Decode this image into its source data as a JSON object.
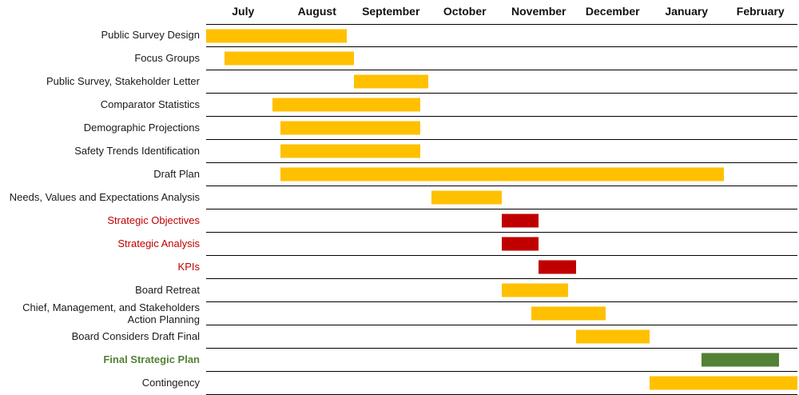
{
  "chart_data": {
    "type": "bar",
    "subtype": "gantt",
    "title": "",
    "months": [
      "July",
      "August",
      "September",
      "October",
      "November",
      "December",
      "January",
      "February"
    ],
    "axis_range_months": [
      0,
      8
    ],
    "grid": "horizontal-row-lines",
    "colors": {
      "amber": "#FFC000",
      "red": "#C00000",
      "green": "#538135"
    },
    "label_colors": {
      "black": "#1a1a1a",
      "red": "#C00000",
      "green": "#538135"
    },
    "tasks": [
      {
        "label": "Public Survey Design",
        "start": 0.0,
        "end": 1.9,
        "color": "amber",
        "label_color": "black",
        "bold": false
      },
      {
        "label": "Focus Groups",
        "start": 0.25,
        "end": 2.0,
        "color": "amber",
        "label_color": "black",
        "bold": false
      },
      {
        "label": "Public Survey, Stakeholder Letter",
        "start": 2.0,
        "end": 3.0,
        "color": "amber",
        "label_color": "black",
        "bold": false
      },
      {
        "label": "Comparator Statistics",
        "start": 0.9,
        "end": 2.9,
        "color": "amber",
        "label_color": "black",
        "bold": false
      },
      {
        "label": "Demographic Projections",
        "start": 1.0,
        "end": 2.9,
        "color": "amber",
        "label_color": "black",
        "bold": false
      },
      {
        "label": "Safety Trends Identification",
        "start": 1.0,
        "end": 2.9,
        "color": "amber",
        "label_color": "black",
        "bold": false
      },
      {
        "label": "Draft Plan",
        "start": 1.0,
        "end": 7.0,
        "color": "amber",
        "label_color": "black",
        "bold": false
      },
      {
        "label": "Needs, Values and Expectations Analysis",
        "start": 3.05,
        "end": 4.0,
        "color": "amber",
        "label_color": "black",
        "bold": false
      },
      {
        "label": "Strategic Objectives",
        "start": 4.0,
        "end": 4.5,
        "color": "red",
        "label_color": "red",
        "bold": false
      },
      {
        "label": "Strategic Analysis",
        "start": 4.0,
        "end": 4.5,
        "color": "red",
        "label_color": "red",
        "bold": false
      },
      {
        "label": "KPIs",
        "start": 4.5,
        "end": 5.0,
        "color": "red",
        "label_color": "red",
        "bold": false
      },
      {
        "label": "Board Retreat",
        "start": 4.0,
        "end": 4.9,
        "color": "amber",
        "label_color": "black",
        "bold": false
      },
      {
        "label": "Chief, Management, and Stakeholders Action Planning",
        "start": 4.4,
        "end": 5.4,
        "color": "amber",
        "label_color": "black",
        "bold": false
      },
      {
        "label": "Board Considers Draft Final",
        "start": 5.0,
        "end": 6.0,
        "color": "amber",
        "label_color": "black",
        "bold": false
      },
      {
        "label": "Final Strategic Plan",
        "start": 6.7,
        "end": 7.75,
        "color": "green",
        "label_color": "green",
        "bold": true
      },
      {
        "label": "Contingency",
        "start": 6.0,
        "end": 8.0,
        "color": "amber",
        "label_color": "black",
        "bold": false
      }
    ]
  }
}
